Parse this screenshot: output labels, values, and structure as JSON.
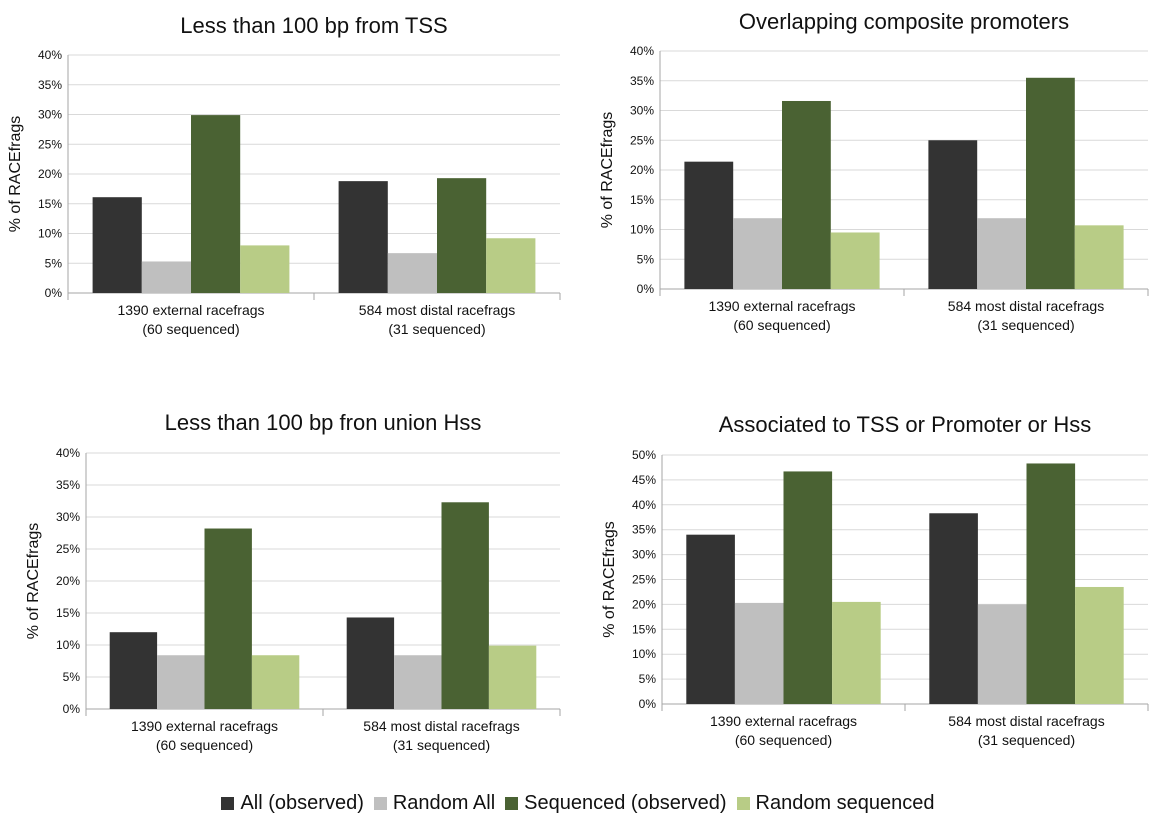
{
  "chart_data": [
    {
      "type": "bar",
      "title": "Less than 100 bp from TSS",
      "ylabel": "% of RACEfrags",
      "xlabel": "",
      "categories": [
        "1390 external racefrags (60 sequenced)",
        "584 most distal racefrags (31 sequenced)"
      ],
      "category_lines": [
        [
          "1390 external racefrags",
          "(60 sequenced)"
        ],
        [
          "584 most distal racefrags",
          "(31 sequenced)"
        ]
      ],
      "yticks": [
        "0%",
        "5%",
        "10%",
        "15%",
        "20%",
        "25%",
        "30%",
        "35%",
        "40%"
      ],
      "ylim": [
        0,
        40
      ],
      "series": [
        {
          "name": "All (observed)",
          "values": [
            16.1,
            18.8
          ]
        },
        {
          "name": "Random All",
          "values": [
            5.3,
            6.7
          ]
        },
        {
          "name": "Sequenced (observed)",
          "values": [
            29.9,
            19.3
          ]
        },
        {
          "name": "Random sequenced",
          "values": [
            8.0,
            9.2
          ]
        }
      ],
      "grid": true
    },
    {
      "type": "bar",
      "title": "Overlapping composite promoters",
      "ylabel": "% of RACEfrags",
      "xlabel": "",
      "categories": [
        "1390 external racefrags (60 sequenced)",
        "584 most distal racefrags (31 sequenced)"
      ],
      "category_lines": [
        [
          "1390 external racefrags",
          "(60 sequenced)"
        ],
        [
          "584 most distal racefrags",
          "(31 sequenced)"
        ]
      ],
      "yticks": [
        "0%",
        "5%",
        "10%",
        "15%",
        "20%",
        "25%",
        "30%",
        "35%",
        "40%"
      ],
      "ylim": [
        0,
        40
      ],
      "series": [
        {
          "name": "All (observed)",
          "values": [
            21.4,
            25.0
          ]
        },
        {
          "name": "Random All",
          "values": [
            11.9,
            11.9
          ]
        },
        {
          "name": "Sequenced (observed)",
          "values": [
            31.6,
            35.5
          ]
        },
        {
          "name": "Random sequenced",
          "values": [
            9.5,
            10.7
          ]
        }
      ],
      "grid": true
    },
    {
      "type": "bar",
      "title": "Less than 100 bp fron union Hss",
      "ylabel": "% of RACEfrags",
      "xlabel": "",
      "categories": [
        "1390 external racefrags (60 sequenced)",
        "584 most distal racefrags (31 sequenced)"
      ],
      "category_lines": [
        [
          "1390 external racefrags",
          "(60 sequenced)"
        ],
        [
          "584 most distal racefrags",
          "(31 sequenced)"
        ]
      ],
      "yticks": [
        "0%",
        "5%",
        "10%",
        "15%",
        "20%",
        "25%",
        "30%",
        "35%",
        "40%"
      ],
      "ylim": [
        0,
        40
      ],
      "series": [
        {
          "name": "All (observed)",
          "values": [
            12.0,
            14.3
          ]
        },
        {
          "name": "Random All",
          "values": [
            8.4,
            8.4
          ]
        },
        {
          "name": "Sequenced (observed)",
          "values": [
            28.2,
            32.3
          ]
        },
        {
          "name": "Random sequenced",
          "values": [
            8.4,
            9.9
          ]
        }
      ],
      "grid": true
    },
    {
      "type": "bar",
      "title": "Associated to TSS or Promoter or Hss",
      "ylabel": "% of RACEfrags",
      "xlabel": "",
      "categories": [
        "1390 external racefrags (60 sequenced)",
        "584 most distal racefrags (31 sequenced)"
      ],
      "category_lines": [
        [
          "1390 external racefrags",
          "(60 sequenced)"
        ],
        [
          "584 most distal racefrags",
          "(31 sequenced)"
        ]
      ],
      "yticks": [
        "0%",
        "5%",
        "10%",
        "15%",
        "20%",
        "25%",
        "30%",
        "35%",
        "40%",
        "45%",
        "50%"
      ],
      "ylim": [
        0,
        50
      ],
      "series": [
        {
          "name": "All (observed)",
          "values": [
            34.0,
            38.3
          ]
        },
        {
          "name": "Random All",
          "values": [
            20.3,
            20.0
          ]
        },
        {
          "name": "Sequenced (observed)",
          "values": [
            46.7,
            48.3
          ]
        },
        {
          "name": "Random sequenced",
          "values": [
            20.5,
            23.5
          ]
        }
      ],
      "grid": true
    }
  ],
  "legend": {
    "position": "bottom-center",
    "items": [
      {
        "label": "All (observed)",
        "color": "#333333"
      },
      {
        "label": "Random All",
        "color": "#bfbfbf"
      },
      {
        "label": "Sequenced (observed)",
        "color": "#4a6233"
      },
      {
        "label": "Random sequenced",
        "color": "#b8cc86"
      }
    ]
  },
  "colors": {
    "series": [
      "#333333",
      "#bfbfbf",
      "#4a6233",
      "#b8cc86"
    ],
    "grid": "#d9d9d9",
    "axis": "#a6a6a6",
    "text": "#111111"
  }
}
